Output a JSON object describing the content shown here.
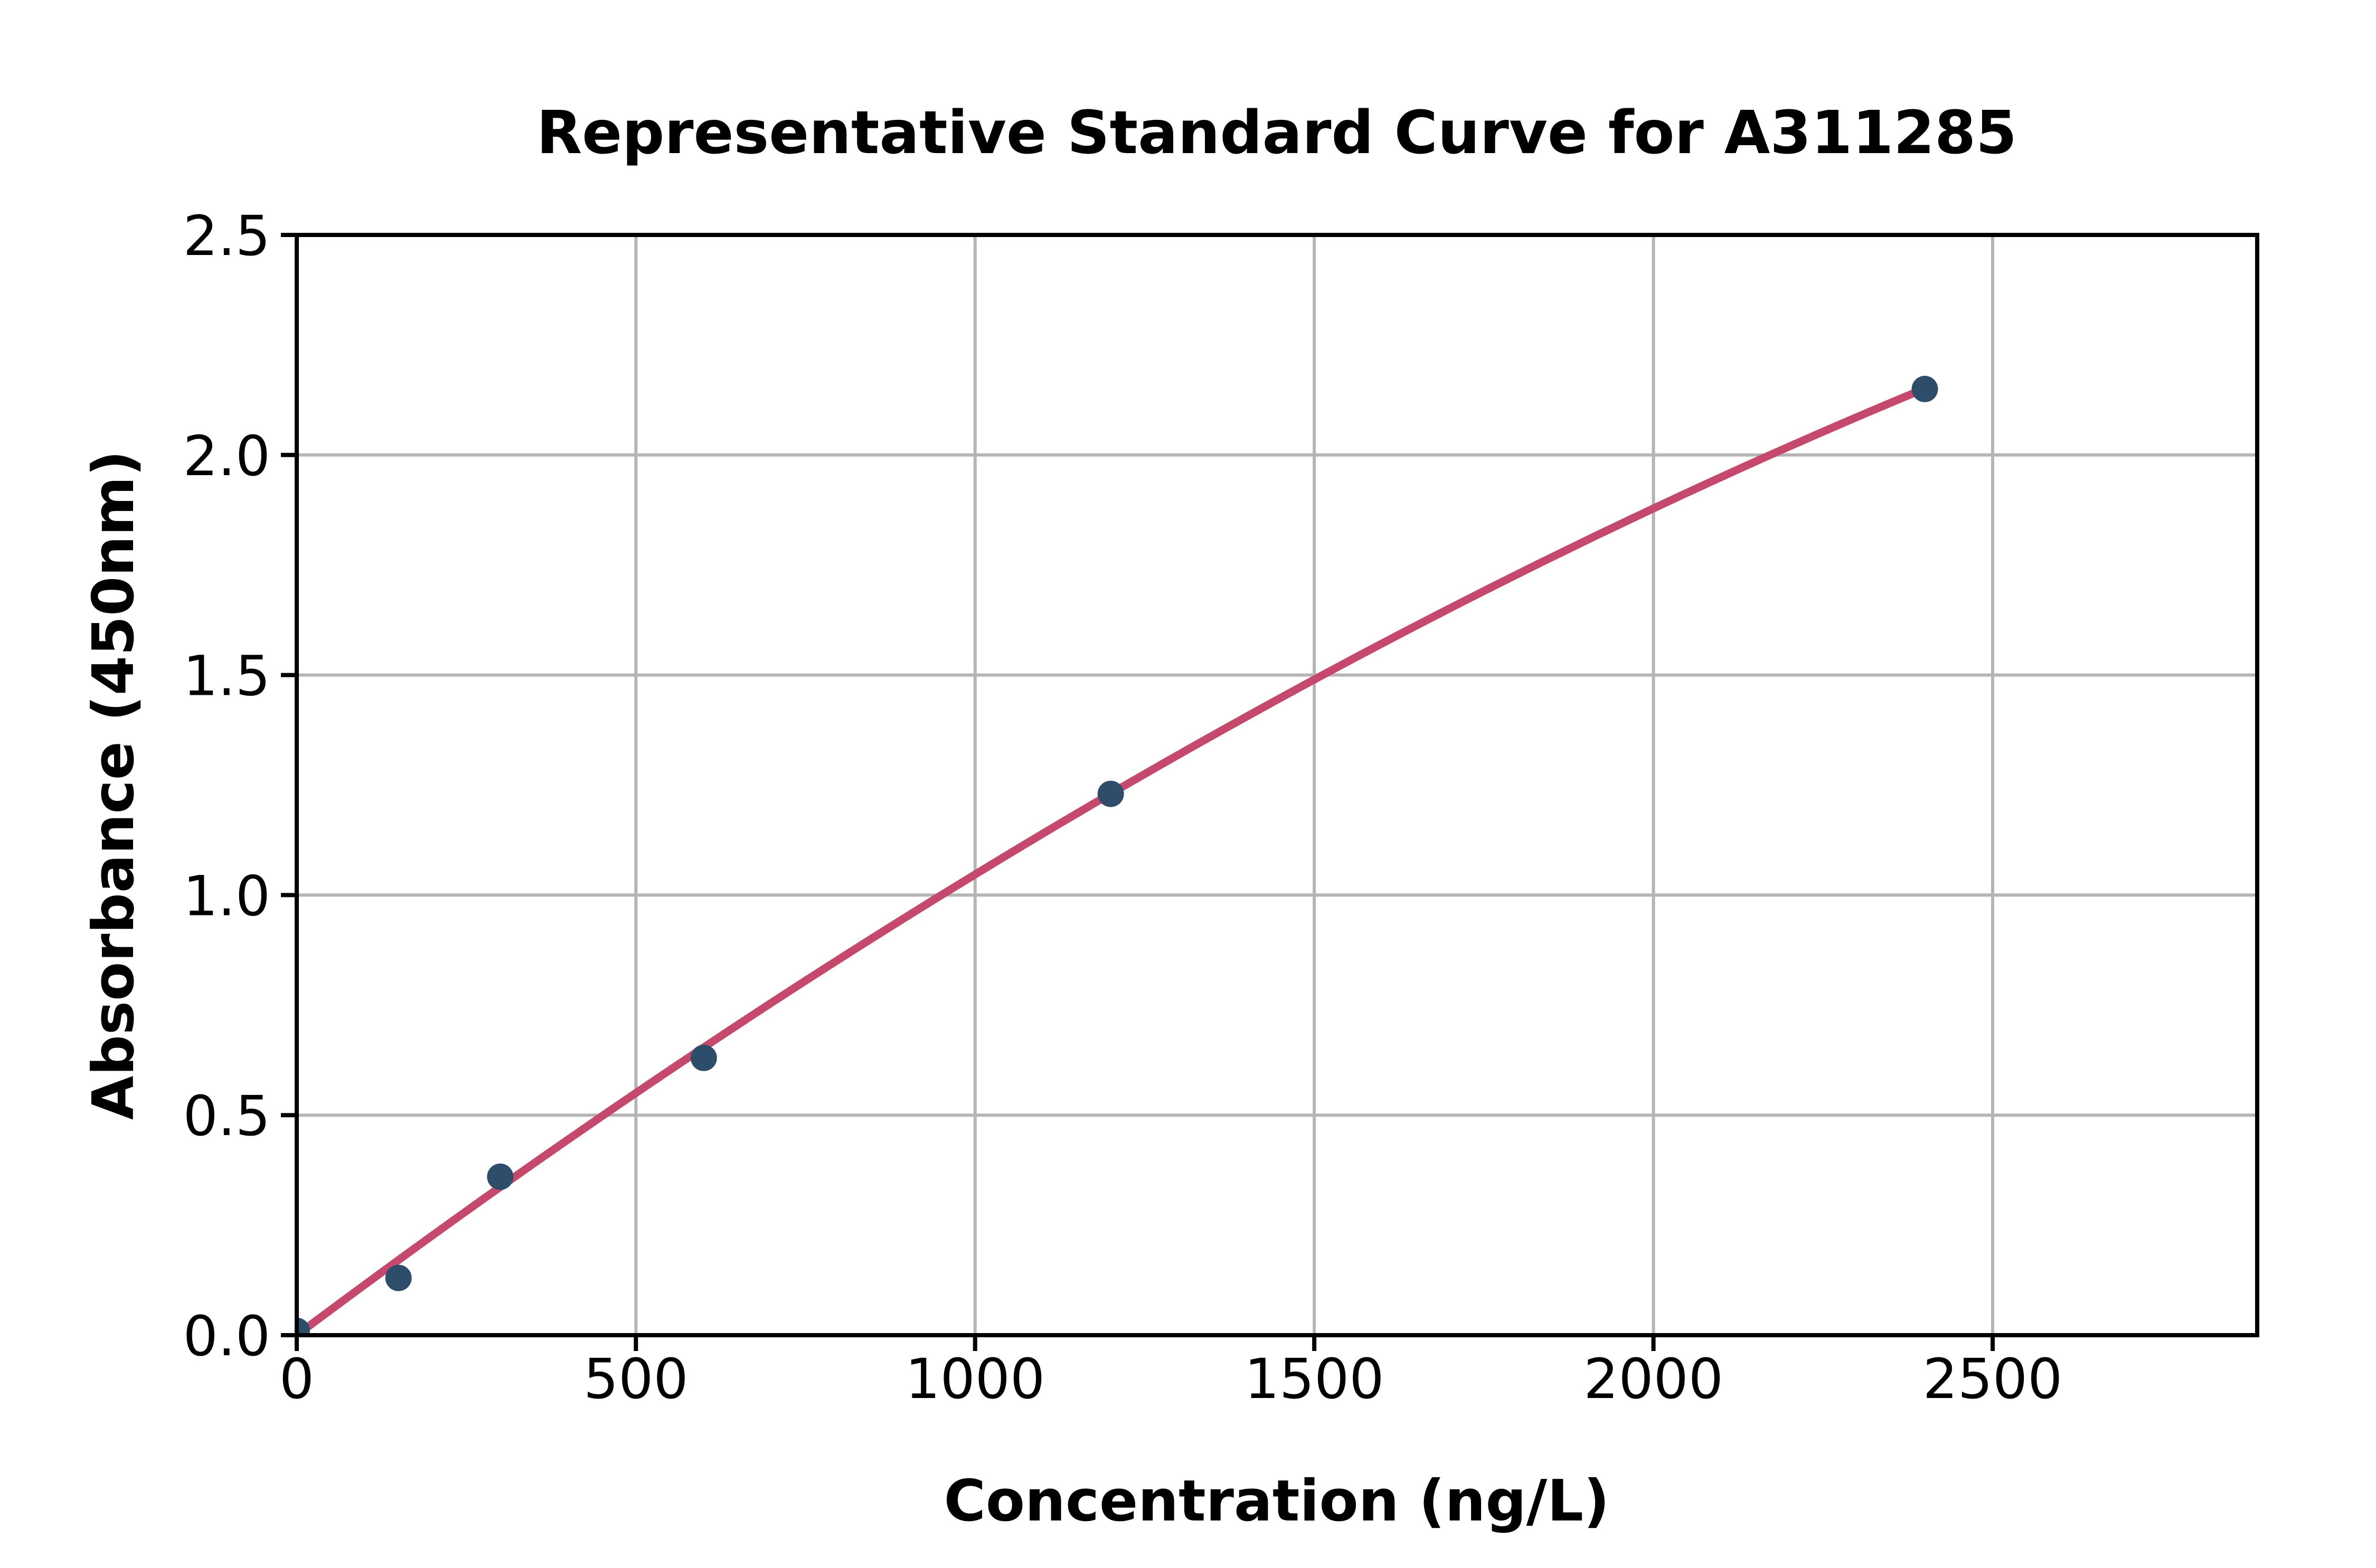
{
  "figure": {
    "background": "#ffffff"
  },
  "chart_data": {
    "type": "scatter",
    "title": "Representative Standard Curve for A311285",
    "xlabel": "Concentration (ng/L)",
    "ylabel": "Absorbance (450nm)",
    "xlim": [
      0,
      2890
    ],
    "ylim": [
      0,
      2.5
    ],
    "grid": true,
    "legend": "none",
    "x_ticks": [
      0,
      500,
      1000,
      1500,
      2000,
      2500
    ],
    "x_tick_labels": [
      "0",
      "500",
      "1000",
      "1500",
      "2000",
      "2500"
    ],
    "y_ticks": [
      0.0,
      0.5,
      1.0,
      1.5,
      2.0,
      2.5
    ],
    "y_tick_labels": [
      "0.0",
      "0.5",
      "1.0",
      "1.5",
      "2.0",
      "2.5"
    ],
    "points": {
      "x": [
        0,
        150,
        300,
        600,
        1200,
        2400
      ],
      "y": [
        0.01,
        0.13,
        0.36,
        0.63,
        1.23,
        2.15
      ]
    },
    "fit_curve": {
      "type": "quadratic",
      "linear_coef": 0.0011546,
      "quadratic_coef": -1.0764e-07,
      "x_range": [
        0,
        2400
      ]
    },
    "colors": {
      "marker": "#2e4d6b",
      "line": "#c5486d",
      "grid": "#b5b5b5",
      "axis": "#000000"
    }
  }
}
